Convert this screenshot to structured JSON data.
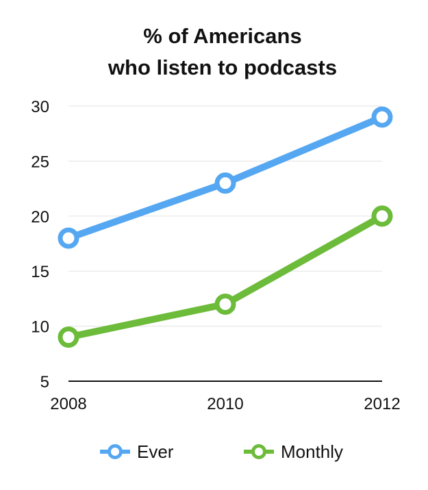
{
  "chart_data": {
    "type": "line",
    "title_lines": [
      "% of Americans",
      "who listen to podcasts"
    ],
    "x": [
      "2008",
      "2010",
      "2012"
    ],
    "ylim": [
      5,
      30
    ],
    "yticks": [
      30,
      25,
      20,
      15,
      10,
      5
    ],
    "grid": true,
    "legend_position": "bottom",
    "series": [
      {
        "name": "Ever",
        "values": [
          18,
          23,
          29
        ],
        "color": "#55A7F2"
      },
      {
        "name": "Monthly",
        "values": [
          9,
          12,
          20
        ],
        "color": "#6DBB3A"
      }
    ]
  }
}
